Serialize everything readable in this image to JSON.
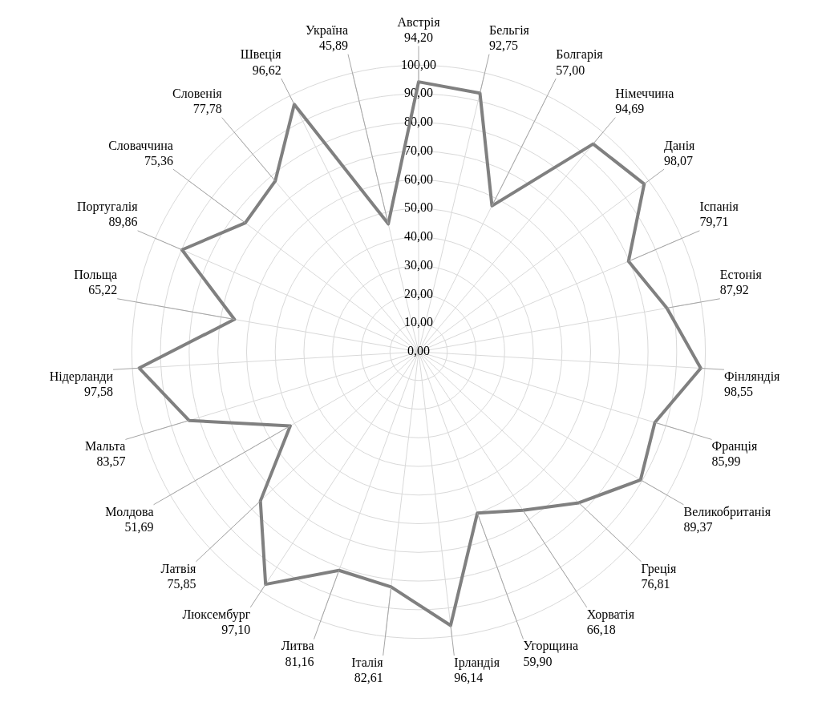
{
  "chart_data": {
    "type": "radar",
    "categories": [
      "Австрія",
      "Бельгія",
      "Болгарія",
      "Німеччина",
      "Данія",
      "Іспанія",
      "Естонія",
      "Фінляндія",
      "Франція",
      "Великобританія",
      "Греція",
      "Хорватія",
      "Угорщина",
      "Ірландія",
      "Італія",
      "Литва",
      "Люксембург",
      "Латвія",
      "Молдова",
      "Мальта",
      "Нідерланди",
      "Польща",
      "Португалія",
      "Словаччина",
      "Словенія",
      "Швеція",
      "Україна"
    ],
    "series": [
      {
        "color": "#808080",
        "values": [
          94.2,
          92.75,
          57.0,
          94.69,
          98.07,
          79.71,
          87.92,
          98.55,
          85.99,
          89.37,
          76.81,
          66.18,
          59.9,
          96.14,
          82.61,
          81.16,
          97.1,
          75.85,
          51.69,
          83.57,
          97.58,
          65.22,
          89.86,
          75.36,
          77.78,
          96.62,
          45.89
        ],
        "value_labels": [
          "94,20",
          "92,75",
          "57,00",
          "94,69",
          "98,07",
          "79,71",
          "87,92",
          "98,55",
          "85,99",
          "89,37",
          "76,81",
          "66,18",
          "59,90",
          "96,14",
          "82,61",
          "81,16",
          "97,10",
          "75,85",
          "51,69",
          "83,57",
          "97,58",
          "65,22",
          "89,86",
          "75,36",
          "77,78",
          "96,62",
          "45,89"
        ]
      }
    ],
    "ylim": [
      0,
      100
    ],
    "yticks": [
      {
        "value": 0,
        "label": "0,00"
      },
      {
        "value": 10,
        "label": "10,00"
      },
      {
        "value": 20,
        "label": "20,00"
      },
      {
        "value": 30,
        "label": "30,00"
      },
      {
        "value": 40,
        "label": "40,00"
      },
      {
        "value": 50,
        "label": "50,00"
      },
      {
        "value": 60,
        "label": "60,00"
      },
      {
        "value": 70,
        "label": "70,00"
      },
      {
        "value": 80,
        "label": "80,00"
      },
      {
        "value": 90,
        "label": "90,00"
      },
      {
        "value": 100,
        "label": "100,00"
      }
    ],
    "grid": true
  }
}
